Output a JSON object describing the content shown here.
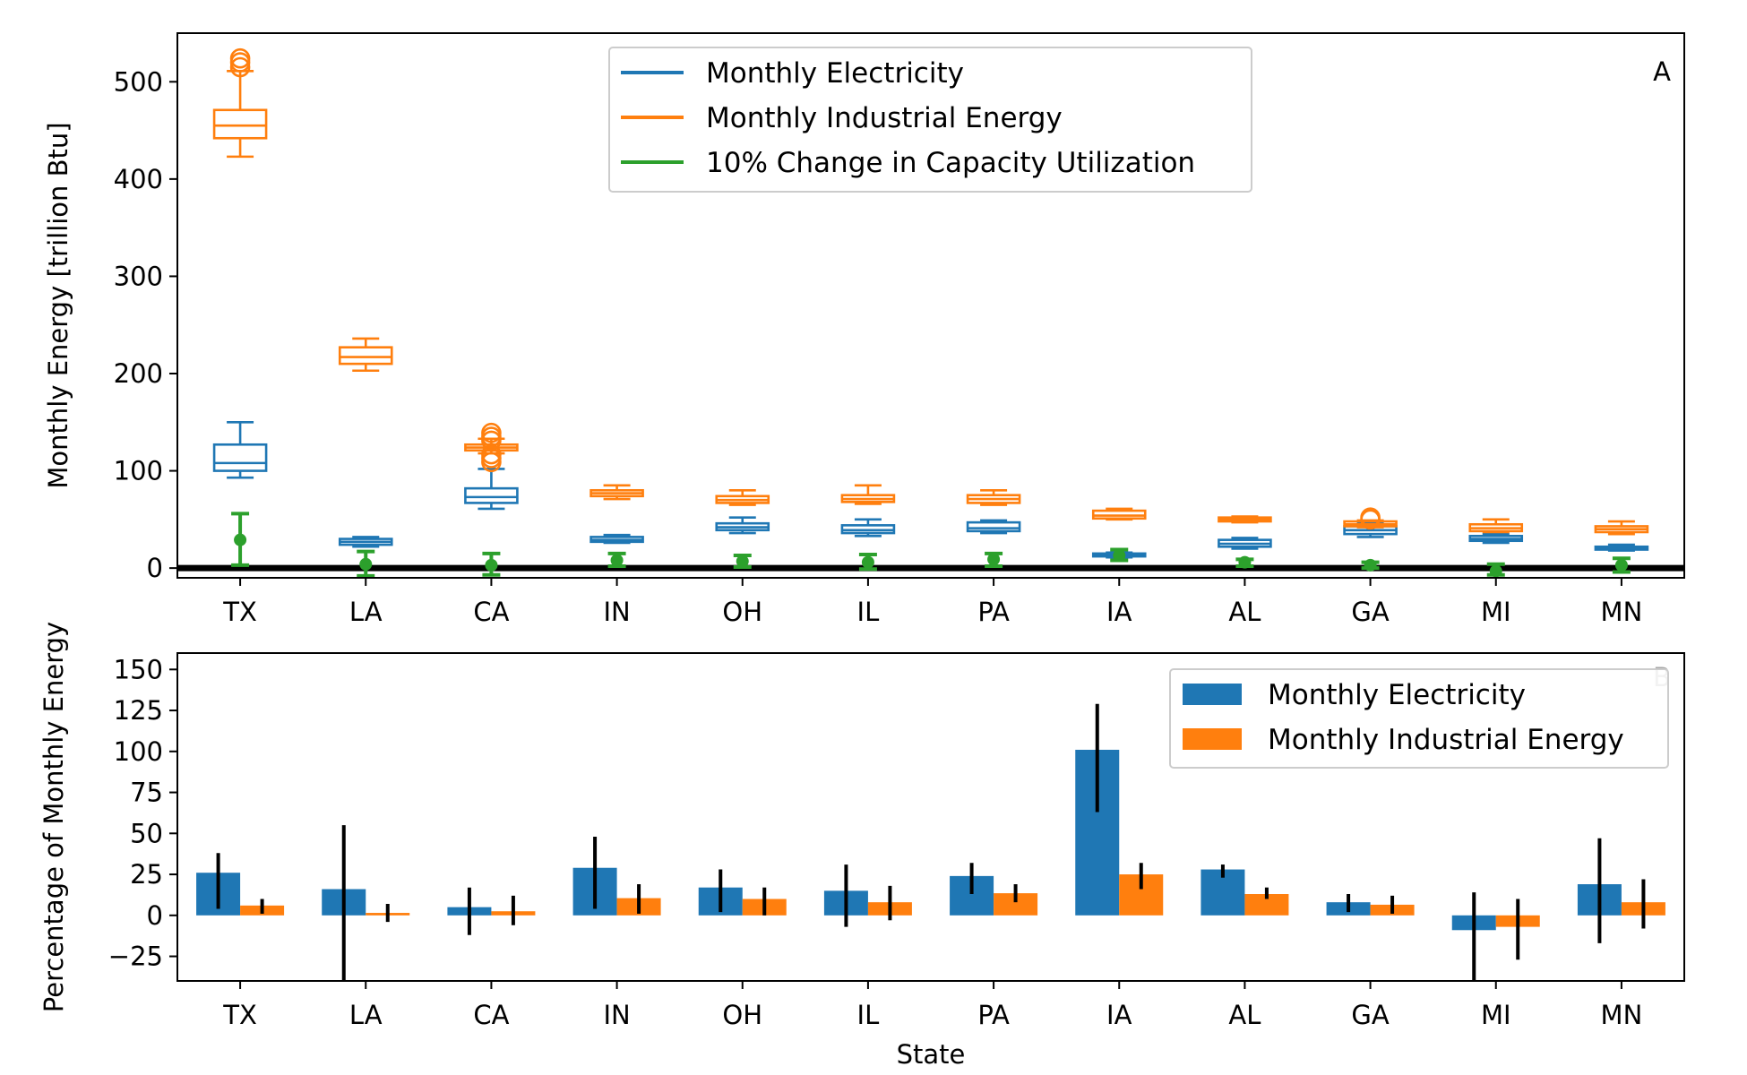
{
  "colors": {
    "electricity": "#1f77b4",
    "industrial": "#ff7f0e",
    "capacity": "#2ca02c",
    "errorbar": "#000000"
  },
  "chart_data": [
    {
      "type": "box",
      "panel_label": "A",
      "xlabel": "",
      "ylabel": "Monthly Energy [trillion Btu]",
      "ylim": [
        -10,
        550
      ],
      "yticks": [
        0,
        100,
        200,
        300,
        400,
        500
      ],
      "zero_line": true,
      "legend_position": "top-center",
      "categories": [
        "TX",
        "LA",
        "CA",
        "IN",
        "OH",
        "IL",
        "PA",
        "IA",
        "AL",
        "GA",
        "MI",
        "MN"
      ],
      "series": [
        {
          "name": "Monthly Electricity",
          "kind": "box",
          "color": "#1f77b4",
          "boxes": [
            {
              "whislo": 93,
              "q1": 100,
              "med": 108,
              "q3": 127,
              "whishi": 150,
              "fliers": []
            },
            {
              "whislo": 22,
              "q1": 24,
              "med": 27,
              "q3": 30,
              "whishi": 32,
              "fliers": []
            },
            {
              "whislo": 61,
              "q1": 67,
              "med": 73,
              "q3": 82,
              "whishi": 102,
              "fliers": []
            },
            {
              "whislo": 26,
              "q1": 27,
              "med": 29,
              "q3": 32,
              "whishi": 34,
              "fliers": []
            },
            {
              "whislo": 36,
              "q1": 39,
              "med": 42,
              "q3": 46,
              "whishi": 52,
              "fliers": []
            },
            {
              "whislo": 33,
              "q1": 36,
              "med": 39,
              "q3": 44,
              "whishi": 50,
              "fliers": []
            },
            {
              "whislo": 36,
              "q1": 38,
              "med": 41,
              "q3": 47,
              "whishi": 49,
              "fliers": []
            },
            {
              "whislo": 11,
              "q1": 12,
              "med": 13.5,
              "q3": 15,
              "whishi": 16,
              "fliers": []
            },
            {
              "whislo": 20,
              "q1": 22,
              "med": 25,
              "q3": 29,
              "whishi": 31,
              "fliers": []
            },
            {
              "whislo": 32,
              "q1": 35,
              "med": 39,
              "q3": 43,
              "whishi": 46,
              "fliers": []
            },
            {
              "whislo": 26,
              "q1": 28,
              "med": 30,
              "q3": 33,
              "whishi": 35,
              "fliers": []
            },
            {
              "whislo": 18,
              "q1": 19,
              "med": 20,
              "q3": 22,
              "whishi": 24,
              "fliers": []
            }
          ]
        },
        {
          "name": "Monthly Industrial Energy",
          "kind": "box",
          "color": "#ff7f0e",
          "boxes": [
            {
              "whislo": 423,
              "q1": 442,
              "med": 455,
              "q3": 471,
              "whishi": 511,
              "fliers": [
                515,
                520,
                524
              ]
            },
            {
              "whislo": 203,
              "q1": 210,
              "med": 217,
              "q3": 227,
              "whishi": 236,
              "fliers": []
            },
            {
              "whislo": 118,
              "q1": 121,
              "med": 124,
              "q3": 127,
              "whishi": 133,
              "fliers": [
                109,
                113,
                117,
                131,
                135,
                139
              ]
            },
            {
              "whislo": 71,
              "q1": 74,
              "med": 77,
              "q3": 80,
              "whishi": 85,
              "fliers": []
            },
            {
              "whislo": 65,
              "q1": 67,
              "med": 70,
              "q3": 74,
              "whishi": 80,
              "fliers": []
            },
            {
              "whislo": 66,
              "q1": 68,
              "med": 71,
              "q3": 75,
              "whishi": 85,
              "fliers": []
            },
            {
              "whislo": 65,
              "q1": 67,
              "med": 71,
              "q3": 75,
              "whishi": 80,
              "fliers": []
            },
            {
              "whislo": 50,
              "q1": 51,
              "med": 54,
              "q3": 59,
              "whishi": 61,
              "fliers": []
            },
            {
              "whislo": 47,
              "q1": 48,
              "med": 50,
              "q3": 52,
              "whishi": 53,
              "fliers": []
            },
            {
              "whislo": 42,
              "q1": 43,
              "med": 45,
              "q3": 48,
              "whishi": 49,
              "fliers": [
                50,
                52
              ]
            },
            {
              "whislo": 37,
              "q1": 38,
              "med": 41,
              "q3": 45,
              "whishi": 50,
              "fliers": []
            },
            {
              "whislo": 35,
              "q1": 37,
              "med": 40,
              "q3": 43,
              "whishi": 48,
              "fliers": []
            }
          ]
        },
        {
          "name": "10% Change in Capacity Utilization",
          "kind": "errorbar",
          "color": "#2ca02c",
          "points": [
            {
              "y": 29,
              "low": 3,
              "high": 56
            },
            {
              "y": 4,
              "low": -8,
              "high": 17
            },
            {
              "y": 3,
              "low": -7,
              "high": 15
            },
            {
              "y": 8,
              "low": 2,
              "high": 15
            },
            {
              "y": 7,
              "low": 1,
              "high": 13
            },
            {
              "y": 6,
              "low": -1,
              "high": 14
            },
            {
              "y": 9,
              "low": 2,
              "high": 15
            },
            {
              "y": 13,
              "low": 8,
              "high": 19
            },
            {
              "y": 6,
              "low": 2,
              "high": 9
            },
            {
              "y": 3,
              "low": 0,
              "high": 6
            },
            {
              "y": -3,
              "low": -7,
              "high": 4
            },
            {
              "y": 3,
              "low": -4,
              "high": 10
            }
          ]
        }
      ]
    },
    {
      "type": "bar",
      "panel_label": "B",
      "xlabel": "State",
      "ylabel": "Percentage of Monthly Energy",
      "ylim": [
        -40,
        160
      ],
      "yticks": [
        -25,
        0,
        25,
        50,
        75,
        100,
        125,
        150
      ],
      "ytick_labels": [
        "−25",
        "0",
        "25",
        "50",
        "75",
        "100",
        "125",
        "150"
      ],
      "legend_position": "top-right",
      "categories": [
        "TX",
        "LA",
        "CA",
        "IN",
        "OH",
        "IL",
        "PA",
        "IA",
        "AL",
        "GA",
        "MI",
        "MN"
      ],
      "series": [
        {
          "name": "Monthly Electricity",
          "color": "#1f77b4",
          "values": [
            26,
            16,
            5,
            29,
            17,
            15,
            24,
            101,
            28,
            8,
            -9,
            19
          ],
          "err_low": [
            4,
            -40,
            -12,
            4,
            2,
            -7,
            13,
            63,
            23,
            2,
            -40,
            -17
          ],
          "err_high": [
            38,
            55,
            17,
            48,
            28,
            31,
            32,
            129,
            31,
            13,
            14,
            47
          ]
        },
        {
          "name": "Monthly Industrial Energy",
          "color": "#ff7f0e",
          "values": [
            6,
            1.5,
            2.5,
            10.5,
            10,
            8,
            13.5,
            25,
            13,
            6.5,
            -7,
            8
          ],
          "err_low": [
            1,
            -4,
            -6,
            1,
            0,
            -3,
            8,
            16,
            10,
            1,
            -27,
            -8
          ],
          "err_high": [
            10,
            7,
            12,
            19,
            17,
            18,
            19,
            32,
            17,
            12,
            10,
            22
          ]
        }
      ]
    }
  ]
}
